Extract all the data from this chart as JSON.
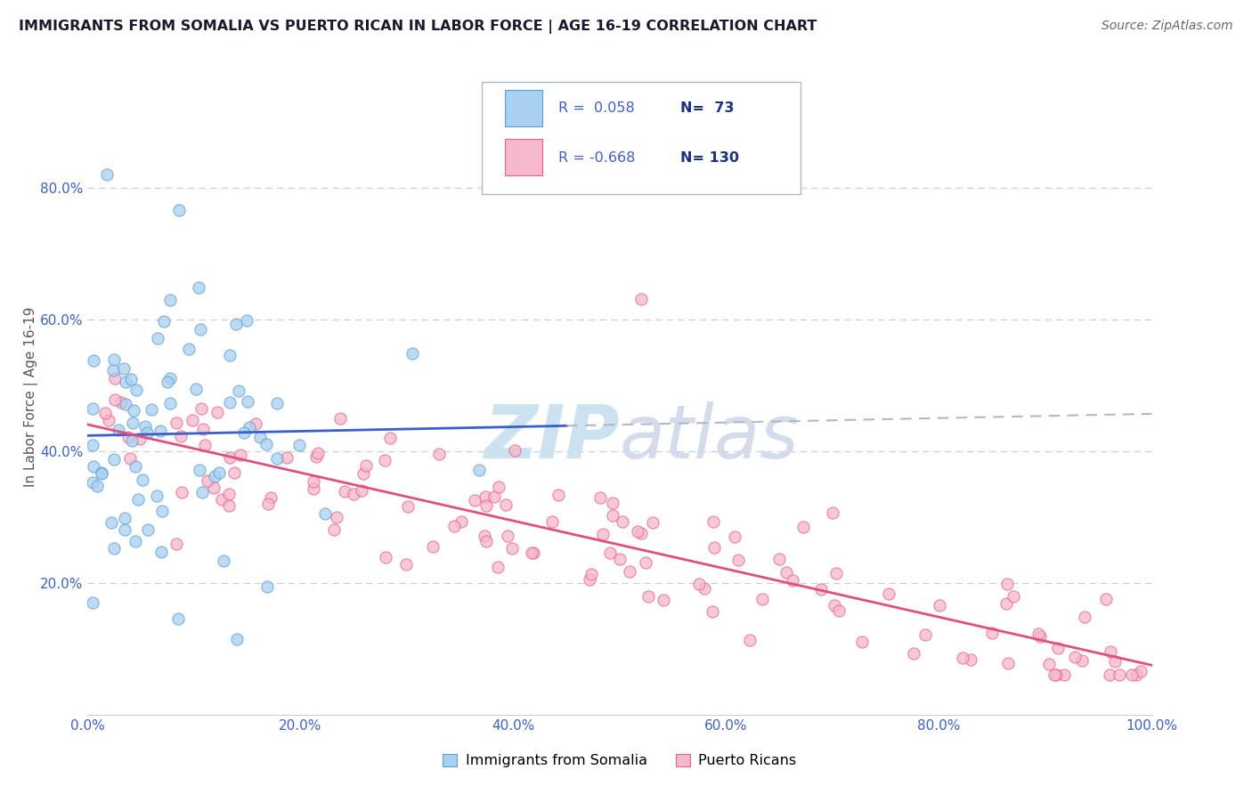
{
  "title": "IMMIGRANTS FROM SOMALIA VS PUERTO RICAN IN LABOR FORCE | AGE 16-19 CORRELATION CHART",
  "source": "Source: ZipAtlas.com",
  "ylabel": "In Labor Force | Age 16-19",
  "xlim": [
    0.0,
    1.0
  ],
  "ylim": [
    0.0,
    1.0
  ],
  "xticks": [
    0.0,
    0.2,
    0.4,
    0.6,
    0.8,
    1.0
  ],
  "yticks": [
    0.2,
    0.4,
    0.6,
    0.8
  ],
  "xtick_labels": [
    "0.0%",
    "20.0%",
    "40.0%",
    "60.0%",
    "80.0%",
    "100.0%"
  ],
  "ytick_labels": [
    "20.0%",
    "40.0%",
    "60.0%",
    "80.0%"
  ],
  "somalia_color": "#a8d0f0",
  "somalia_edge": "#5a9fd4",
  "puerto_rico_color": "#f5b8cc",
  "puerto_rico_edge": "#e8608a",
  "somalia_R": 0.058,
  "somalia_N": 73,
  "puerto_rico_R": -0.668,
  "puerto_rico_N": 130,
  "trend_somalia_color": "#3a5fcd",
  "trend_puerto_color": "#e0507a",
  "trend_dashed_color": "#b0b8c8",
  "grid_color": "#c8d0dc",
  "background_color": "#ffffff",
  "title_color": "#1a1a2e",
  "tick_color": "#4060c0",
  "legend_R_color": "#4060c0",
  "legend_N_color": "#1a3080",
  "watermark_color": "#c8dff0",
  "somalia_label": "Immigrants from Somalia",
  "puerto_label": "Puerto Ricans"
}
